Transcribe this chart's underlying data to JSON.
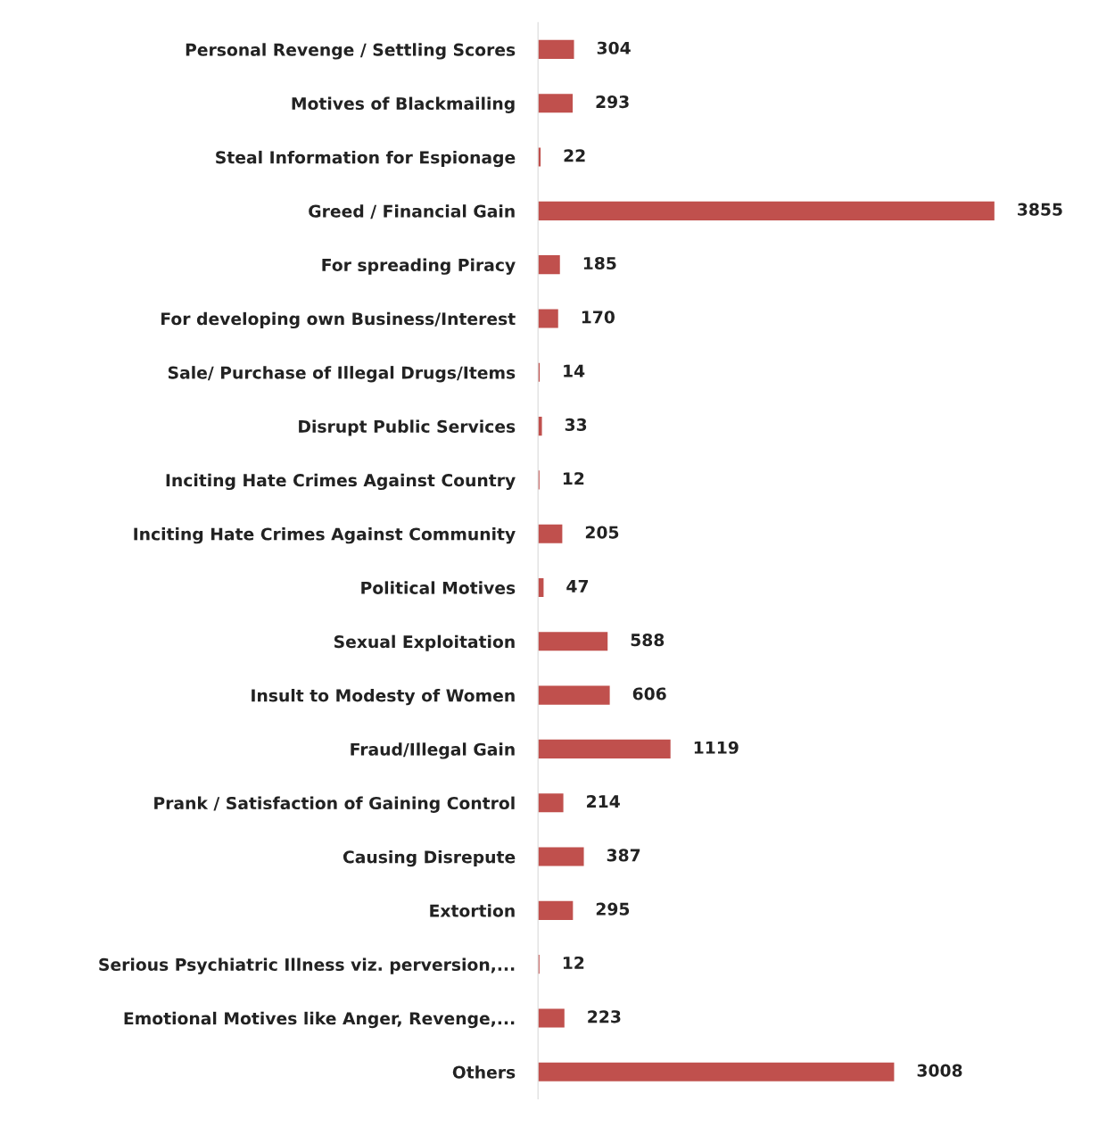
{
  "chart_data": {
    "type": "bar",
    "orientation": "horizontal",
    "categories": [
      "Personal Revenge / Settling Scores",
      "Motives of Blackmailing",
      "Steal Information for Espionage",
      "Greed / Financial Gain",
      "For spreading Piracy",
      "For developing own Business/Interest",
      "Sale/ Purchase of Illegal Drugs/Items",
      "Disrupt Public Services",
      "Inciting Hate Crimes Against Country",
      "Inciting Hate Crimes Against Community",
      "Political Motives",
      "Sexual Exploitation",
      "Insult to Modesty of Women",
      "Fraud/Illegal Gain",
      "Prank / Satisfaction of Gaining Control",
      "Causing Disrepute",
      "Extortion",
      "Serious Psychiatric Illness viz. perversion,...",
      "Emotional Motives like Anger, Revenge,...",
      "Others"
    ],
    "values": [
      304,
      293,
      22,
      3855,
      185,
      170,
      14,
      33,
      12,
      205,
      47,
      588,
      606,
      1119,
      214,
      387,
      295,
      12,
      223,
      3008
    ],
    "color": "#c0504d",
    "data_labels": true,
    "tick_labels": "y",
    "grid": false,
    "legend": false
  }
}
